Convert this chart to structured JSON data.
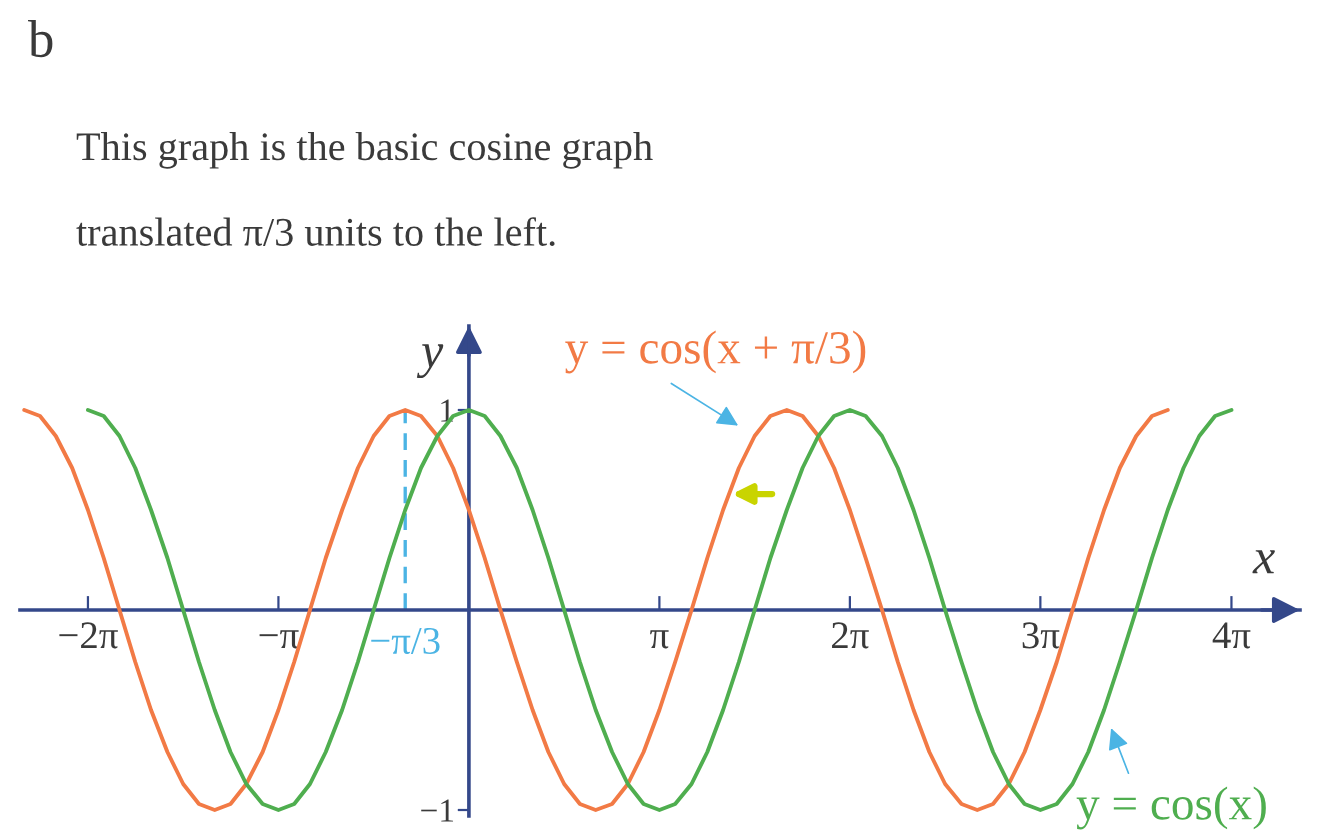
{
  "chart_data": {
    "type": "line",
    "title": "b",
    "subtitle": "This graph is the basic cosine graph\ntranslated π/3 units to the left.",
    "xlabel": "x",
    "ylabel": "y",
    "xlim": [
      -7.4,
      13.7
    ],
    "ylim": [
      -1.03,
      1.42
    ],
    "xticks": [
      {
        "value": -6.28,
        "label": "−2π"
      },
      {
        "value": -3.14,
        "label": "−π"
      },
      {
        "value": 3.14,
        "label": "π"
      },
      {
        "value": 6.28,
        "label": "2π"
      },
      {
        "value": 9.42,
        "label": "3π"
      },
      {
        "value": 12.57,
        "label": "4π"
      }
    ],
    "yticks": [
      1,
      {
        "value": -1,
        "label": "−1"
      }
    ],
    "ref_lines": [
      {
        "axis": "x",
        "value": -1.05,
        "label": "−π/3",
        "color": "#4bb4e4",
        "line_style": "dashed"
      }
    ],
    "series": [
      {
        "name": "y = cos(x + π/3)",
        "color": "#f27a45",
        "x": [
          -7.33,
          -7.07,
          -6.81,
          -6.54,
          -6.28,
          -6.02,
          -5.76,
          -5.5,
          -5.24,
          -4.97,
          -4.71,
          -4.45,
          -4.19,
          -3.93,
          -3.67,
          -3.4,
          -3.14,
          -2.88,
          -2.62,
          -2.36,
          -2.09,
          -1.83,
          -1.57,
          -1.31,
          -1.05,
          -0.79,
          -0.52,
          -0.26,
          0,
          0.26,
          0.52,
          0.79,
          1.05,
          1.31,
          1.57,
          1.83,
          2.09,
          2.36,
          2.62,
          2.88,
          3.14,
          3.4,
          3.67,
          3.93,
          4.19,
          4.45,
          4.71,
          4.97,
          5.24,
          5.5,
          5.76,
          6.02,
          6.28,
          6.54,
          6.81,
          7.07,
          7.33,
          7.59,
          7.85,
          8.12,
          8.38,
          8.64,
          8.9,
          9.16,
          9.42,
          9.69,
          9.95,
          10.21,
          10.47,
          10.73,
          11.0,
          11.26,
          11.52
        ],
        "values": [
          1,
          0.97,
          0.87,
          0.71,
          0.5,
          0.26,
          0,
          -0.26,
          -0.5,
          -0.71,
          -0.87,
          -0.97,
          -1,
          -0.97,
          -0.87,
          -0.71,
          -0.5,
          -0.26,
          0,
          0.26,
          0.5,
          0.71,
          0.87,
          0.97,
          1,
          0.97,
          0.87,
          0.71,
          0.5,
          0.26,
          0,
          -0.26,
          -0.5,
          -0.71,
          -0.87,
          -0.97,
          -1,
          -0.97,
          -0.87,
          -0.71,
          -0.5,
          -0.26,
          0,
          0.26,
          0.5,
          0.71,
          0.87,
          0.97,
          1,
          0.97,
          0.87,
          0.71,
          0.5,
          0.26,
          0,
          -0.26,
          -0.5,
          -0.71,
          -0.87,
          -0.97,
          -1,
          -0.97,
          -0.87,
          -0.71,
          -0.5,
          -0.26,
          0,
          0.26,
          0.5,
          0.71,
          0.87,
          0.97,
          1
        ]
      },
      {
        "name": "y = cos(x)",
        "color": "#4fae4f",
        "x": [
          -6.28,
          -6.02,
          -5.76,
          -5.5,
          -5.24,
          -4.97,
          -4.71,
          -4.45,
          -4.19,
          -3.93,
          -3.67,
          -3.4,
          -3.14,
          -2.88,
          -2.62,
          -2.36,
          -2.09,
          -1.83,
          -1.57,
          -1.31,
          -1.05,
          -0.79,
          -0.52,
          -0.26,
          0,
          0.26,
          0.52,
          0.79,
          1.05,
          1.31,
          1.57,
          1.83,
          2.09,
          2.36,
          2.62,
          2.88,
          3.14,
          3.4,
          3.67,
          3.93,
          4.19,
          4.45,
          4.71,
          4.97,
          5.24,
          5.5,
          5.76,
          6.02,
          6.28,
          6.54,
          6.81,
          7.07,
          7.33,
          7.59,
          7.85,
          8.12,
          8.38,
          8.64,
          8.9,
          9.16,
          9.42,
          9.69,
          9.95,
          10.21,
          10.47,
          10.73,
          11.0,
          11.26,
          11.52,
          11.78,
          12.04,
          12.3,
          12.57
        ],
        "values": [
          1,
          0.97,
          0.87,
          0.71,
          0.5,
          0.26,
          0,
          -0.26,
          -0.5,
          -0.71,
          -0.87,
          -0.97,
          -1,
          -0.97,
          -0.87,
          -0.71,
          -0.5,
          -0.26,
          0,
          0.26,
          0.5,
          0.71,
          0.87,
          0.97,
          1,
          0.97,
          0.87,
          0.71,
          0.5,
          0.26,
          0,
          -0.26,
          -0.5,
          -0.71,
          -0.87,
          -0.97,
          -1,
          -0.97,
          -0.87,
          -0.71,
          -0.5,
          -0.26,
          0,
          0.26,
          0.5,
          0.71,
          0.87,
          0.97,
          1,
          0.97,
          0.87,
          0.71,
          0.5,
          0.26,
          0,
          -0.26,
          -0.5,
          -0.71,
          -0.87,
          -0.97,
          -1,
          -0.97,
          -0.87,
          -0.71,
          -0.5,
          -0.26,
          0,
          0.26,
          0.5,
          0.71,
          0.87,
          0.97,
          1
        ]
      }
    ]
  }
}
